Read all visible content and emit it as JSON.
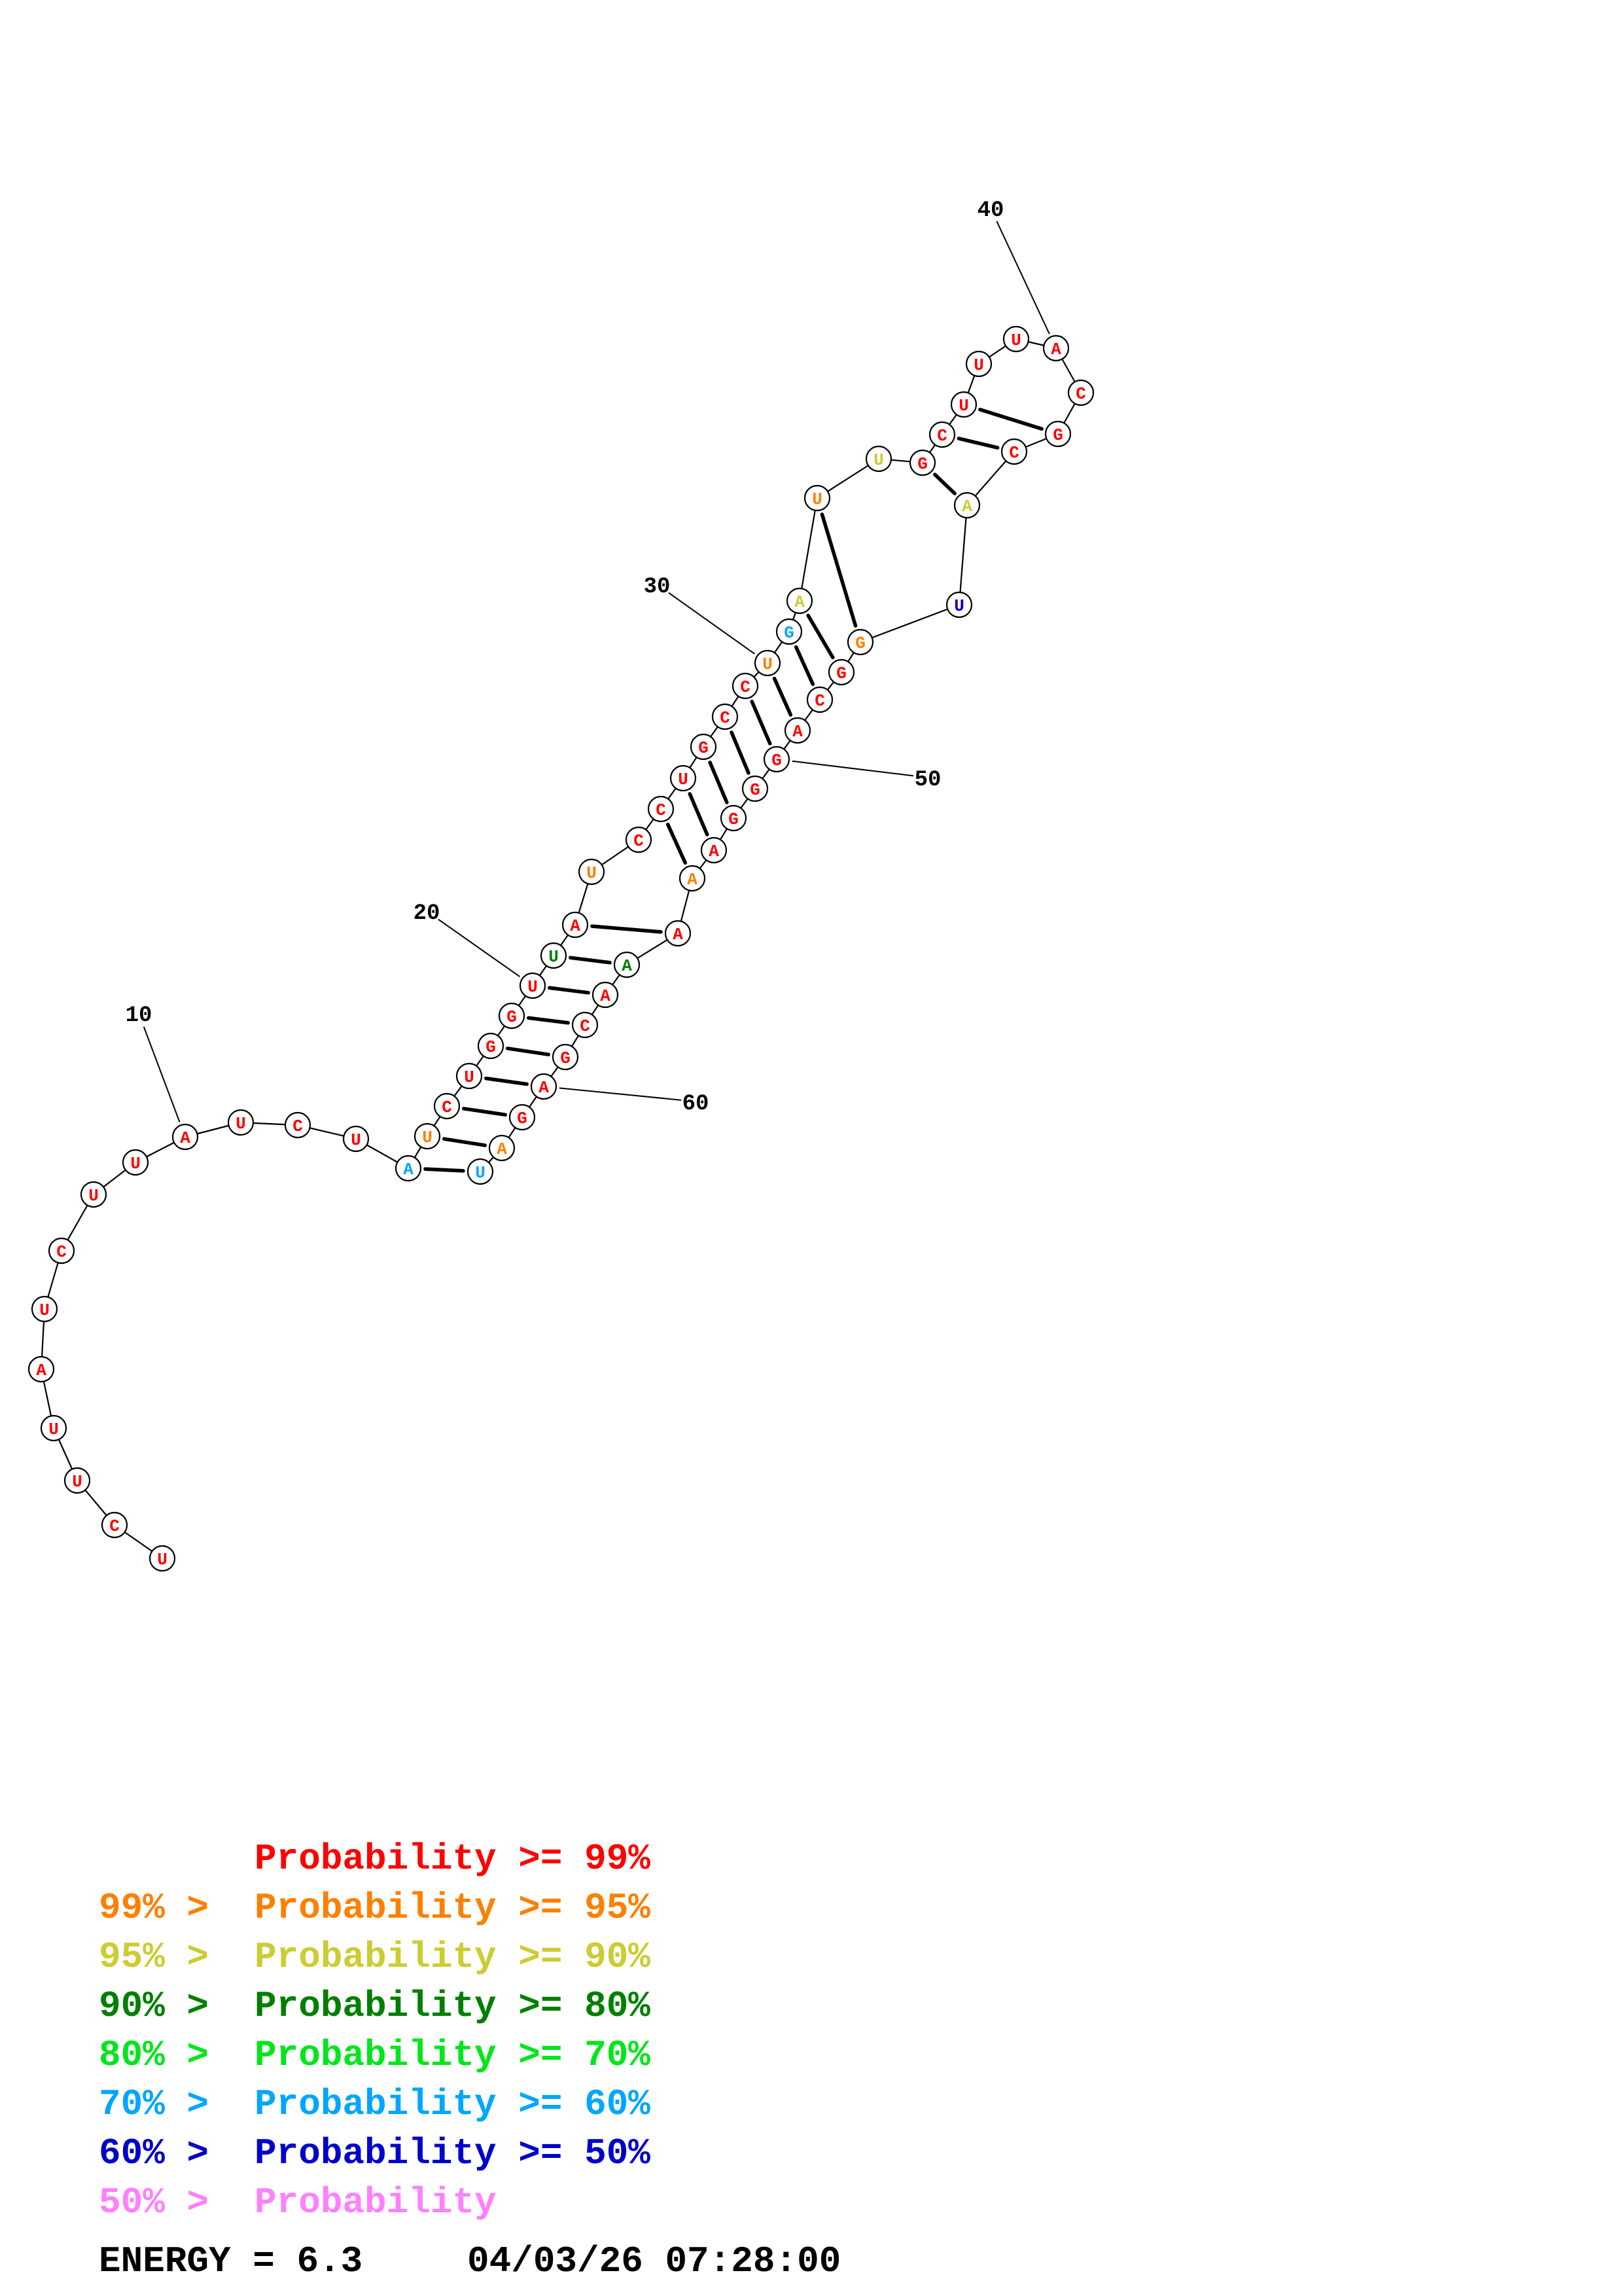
{
  "colors": {
    "p99": "#ff0000",
    "p95": "#ff7f00",
    "p90": "#cccc33",
    "p80": "#007f00",
    "p70": "#00e61a",
    "p60": "#00a6ff",
    "p50": "#0000cc",
    "plow": "#ff80ff"
  },
  "sequence": {
    "bases": [
      "U",
      "C",
      "U",
      "U",
      "A",
      "U",
      "C",
      "U",
      "U",
      "A",
      "U",
      "C",
      "U",
      "A",
      "U",
      "C",
      "U",
      "G",
      "G",
      "U",
      "U",
      "A",
      "U",
      "C",
      "C",
      "U",
      "G",
      "C",
      "C",
      "U",
      "G",
      "A",
      "U",
      "U",
      "G",
      "C",
      "U",
      "U",
      "U",
      "A",
      "C",
      "G",
      "C",
      "A",
      "U",
      "G",
      "G",
      "C",
      "A",
      "G",
      "G",
      "G",
      "A",
      "A",
      "A",
      "A",
      "A",
      "C",
      "G",
      "A",
      "G",
      "A",
      "U"
    ],
    "prob": [
      "p99",
      "p99",
      "p99",
      "p99",
      "p99",
      "p99",
      "p99",
      "p99",
      "p99",
      "p99",
      "p99",
      "p99",
      "p99",
      "p60",
      "p95",
      "p99",
      "p99",
      "p99",
      "p99",
      "p99",
      "p80",
      "p99",
      "p95",
      "p99",
      "p99",
      "p99",
      "p99",
      "p99",
      "p99",
      "p95",
      "p60",
      "p90",
      "p95",
      "p90",
      "p99",
      "p99",
      "p99",
      "p99",
      "p99",
      "p99",
      "p99",
      "p99",
      "p99",
      "p90",
      "p50",
      "p95",
      "p99",
      "p99",
      "p99",
      "p99",
      "p99",
      "p99",
      "p99",
      "p95",
      "p99",
      "p80",
      "p99",
      "p99",
      "p99",
      "p99",
      "p99",
      "p95",
      "p60"
    ],
    "pairs": [
      [
        14,
        63
      ],
      [
        15,
        62
      ],
      [
        16,
        61
      ],
      [
        17,
        60
      ],
      [
        18,
        59
      ],
      [
        19,
        58
      ],
      [
        20,
        57
      ],
      [
        21,
        56
      ],
      [
        22,
        55
      ],
      [
        25,
        54
      ],
      [
        26,
        53
      ],
      [
        27,
        52
      ],
      [
        28,
        51
      ],
      [
        29,
        50
      ],
      [
        30,
        49
      ],
      [
        31,
        48
      ],
      [
        32,
        47
      ],
      [
        33,
        46
      ],
      [
        35,
        44
      ],
      [
        36,
        43
      ],
      [
        37,
        42
      ]
    ],
    "tick_labels": [
      {
        "index": 10,
        "label": "10"
      },
      {
        "index": 20,
        "label": "20"
      },
      {
        "index": 30,
        "label": "30"
      },
      {
        "index": 40,
        "label": "40"
      },
      {
        "index": 50,
        "label": "50"
      },
      {
        "index": 60,
        "label": "60"
      }
    ]
  },
  "legend": [
    {
      "prefix": "",
      "label": "Probability >= 99%",
      "color": "p99"
    },
    {
      "prefix": "99% > ",
      "label": "Probability >= 95%",
      "color": "p95"
    },
    {
      "prefix": "95% > ",
      "label": "Probability >= 90%",
      "color": "p90"
    },
    {
      "prefix": "90% > ",
      "label": "Probability >= 80%",
      "color": "p80"
    },
    {
      "prefix": "80% > ",
      "label": "Probability >= 70%",
      "color": "p70"
    },
    {
      "prefix": "70% > ",
      "label": "Probability >= 60%",
      "color": "p60"
    },
    {
      "prefix": "60% > ",
      "label": "Probability >= 50%",
      "color": "p50"
    },
    {
      "prefix": "50% > ",
      "label": "Probability",
      "color": "plow"
    }
  ],
  "footer": {
    "energy": "ENERGY = 6.3",
    "timestamp": "04/03/26 07:28:00"
  }
}
